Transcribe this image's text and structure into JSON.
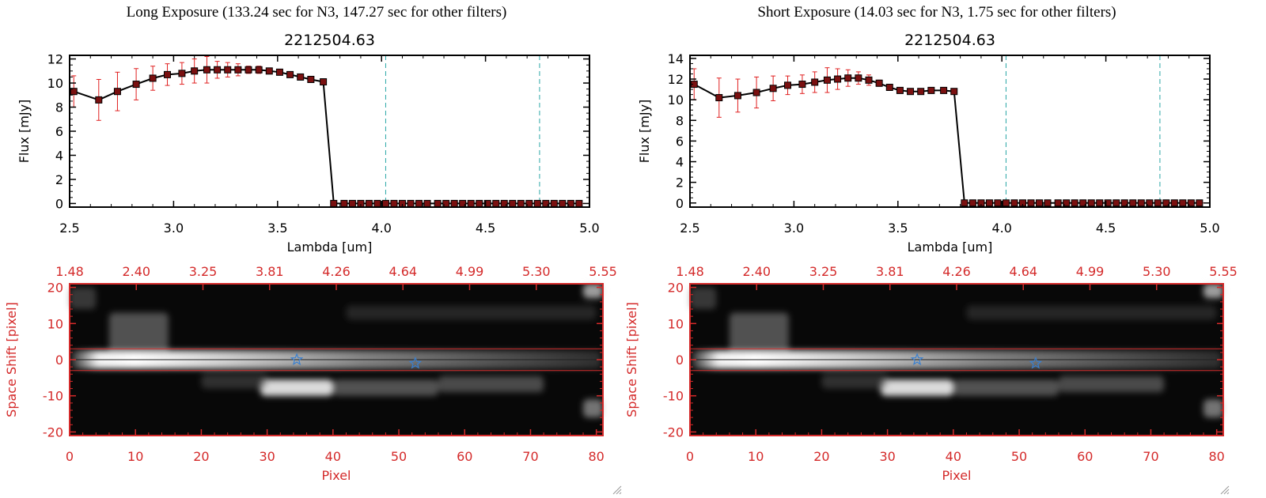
{
  "panels": [
    {
      "title": "Long Exposure (133.24 sec for N3, 147.27 sec for other filters)",
      "chart_data": [
        {
          "type": "line",
          "title": "2212504.63",
          "xlabel": "Lambda [um]",
          "ylabel": "Flux [mJy]",
          "xlim": [
            2.5,
            5.0
          ],
          "ylim": [
            -0.3,
            12.3
          ],
          "xticks": [
            "2.5",
            "3.0",
            "3.5",
            "4.0",
            "4.5",
            "5.0"
          ],
          "yticks": [
            "0",
            "2",
            "4",
            "6",
            "8",
            "10",
            "12"
          ],
          "vlines": [
            4.02,
            4.76
          ],
          "series": [
            {
              "x": [
                2.52,
                2.64,
                2.73,
                2.82,
                2.9,
                2.97,
                3.04,
                3.1,
                3.16,
                3.21,
                3.26,
                3.31,
                3.36,
                3.41,
                3.46,
                3.51,
                3.56,
                3.61,
                3.66,
                3.72,
                3.77,
                3.82,
                3.86,
                3.9,
                3.94,
                3.98,
                4.02,
                4.06,
                4.1,
                4.14,
                4.18,
                4.22,
                4.27,
                4.31,
                4.35,
                4.39,
                4.43,
                4.47,
                4.51,
                4.55,
                4.59,
                4.63,
                4.67,
                4.71,
                4.75,
                4.79,
                4.83,
                4.87,
                4.91,
                4.95
              ],
              "y": [
                9.3,
                8.6,
                9.3,
                9.9,
                10.4,
                10.7,
                10.8,
                11.0,
                11.1,
                11.1,
                11.1,
                11.1,
                11.1,
                11.1,
                11.0,
                10.9,
                10.7,
                10.5,
                10.3,
                10.1,
                0,
                0,
                0,
                0,
                0,
                0,
                0,
                0,
                0,
                0,
                0,
                0,
                0,
                0,
                0,
                0,
                0,
                0,
                0,
                0,
                0,
                0,
                0,
                0,
                0,
                0,
                0,
                0,
                0,
                0
              ],
              "err": [
                1.3,
                1.7,
                1.6,
                1.3,
                1.0,
                0.9,
                0.9,
                1.0,
                1.1,
                0.7,
                0.6,
                0.5,
                0.3,
                0.3,
                0.2,
                0.2,
                0.2,
                0.2,
                0.2,
                0.2,
                0,
                0,
                0,
                0,
                0,
                0,
                0,
                0,
                0,
                0,
                0,
                0,
                0,
                0,
                0,
                0,
                0,
                0,
                0,
                0,
                0,
                0,
                0,
                0,
                0,
                0,
                0,
                0,
                0,
                0
              ]
            }
          ]
        },
        {
          "type": "heatmap",
          "xlabel": "Pixel",
          "ylabel": "Space Shift [pixel]",
          "xlim": [
            0,
            81
          ],
          "ylim": [
            -21,
            21
          ],
          "xticks": [
            "0",
            "10",
            "20",
            "30",
            "40",
            "50",
            "60",
            "70",
            "80"
          ],
          "yticks": [
            "-20",
            "-10",
            "0",
            "10",
            "20"
          ],
          "top_ticks": [
            "1.48",
            "2.40",
            "3.25",
            "3.81",
            "4.26",
            "4.64",
            "4.99",
            "5.30",
            "5.55"
          ],
          "hlines": [
            3,
            -3
          ],
          "markers": [
            {
              "x": 34.5,
              "y": 0
            },
            {
              "x": 52.5,
              "y": -1
            }
          ]
        }
      ]
    },
    {
      "title": "Short Exposure (14.03 sec for N3, 1.75 sec for other filters)",
      "chart_data": [
        {
          "type": "line",
          "title": "2212504.63",
          "xlabel": "Lambda [um]",
          "ylabel": "Flux [mJy]",
          "xlim": [
            2.5,
            5.0
          ],
          "ylim": [
            -0.4,
            14.3
          ],
          "xticks": [
            "2.5",
            "3.0",
            "3.5",
            "4.0",
            "4.5",
            "5.0"
          ],
          "yticks": [
            "0",
            "2",
            "4",
            "6",
            "8",
            "10",
            "12",
            "14"
          ],
          "vlines": [
            4.02,
            4.76
          ],
          "series": [
            {
              "x": [
                2.52,
                2.64,
                2.73,
                2.82,
                2.9,
                2.97,
                3.04,
                3.1,
                3.16,
                3.21,
                3.26,
                3.31,
                3.36,
                3.41,
                3.46,
                3.51,
                3.56,
                3.61,
                3.66,
                3.72,
                3.77,
                3.82,
                3.86,
                3.9,
                3.94,
                3.98,
                4.02,
                4.06,
                4.1,
                4.14,
                4.18,
                4.22,
                4.27,
                4.31,
                4.35,
                4.39,
                4.43,
                4.47,
                4.51,
                4.55,
                4.59,
                4.63,
                4.67,
                4.71,
                4.75,
                4.79,
                4.83,
                4.87,
                4.91,
                4.95
              ],
              "y": [
                11.5,
                10.2,
                10.4,
                10.7,
                11.1,
                11.4,
                11.5,
                11.7,
                11.9,
                12.0,
                12.1,
                12.1,
                11.9,
                11.6,
                11.2,
                10.9,
                10.8,
                10.8,
                10.9,
                10.9,
                10.8,
                0,
                0,
                0,
                0,
                0,
                0,
                0,
                0,
                0,
                0,
                0,
                0,
                0,
                0,
                0,
                0,
                0,
                0,
                0,
                0,
                0,
                0,
                0,
                0,
                0,
                0,
                0,
                0,
                0
              ],
              "err": [
                1.5,
                1.9,
                1.6,
                1.5,
                1.2,
                0.9,
                0.9,
                1.0,
                1.2,
                1.0,
                0.8,
                0.6,
                0.5,
                0.3,
                0.2,
                0.2,
                0.2,
                0.2,
                0.2,
                0.2,
                0.2,
                0,
                0,
                0,
                0,
                0,
                0,
                0,
                0,
                0,
                0,
                0,
                0,
                0,
                0,
                0,
                0,
                0,
                0,
                0,
                0,
                0,
                0,
                0,
                0,
                0,
                0,
                0,
                0,
                0
              ]
            }
          ]
        },
        {
          "type": "heatmap",
          "xlabel": "Pixel",
          "ylabel": "Space Shift [pixel]",
          "xlim": [
            0,
            81
          ],
          "ylim": [
            -21,
            21
          ],
          "xticks": [
            "0",
            "10",
            "20",
            "30",
            "40",
            "50",
            "60",
            "70",
            "80"
          ],
          "yticks": [
            "-20",
            "-10",
            "0",
            "10",
            "20"
          ],
          "top_ticks": [
            "1.48",
            "2.40",
            "3.25",
            "3.81",
            "4.26",
            "4.64",
            "4.99",
            "5.30",
            "5.55"
          ],
          "hlines": [
            3,
            -3
          ],
          "markers": [
            {
              "x": 34.5,
              "y": 0
            },
            {
              "x": 52.5,
              "y": -1
            }
          ]
        }
      ]
    }
  ]
}
